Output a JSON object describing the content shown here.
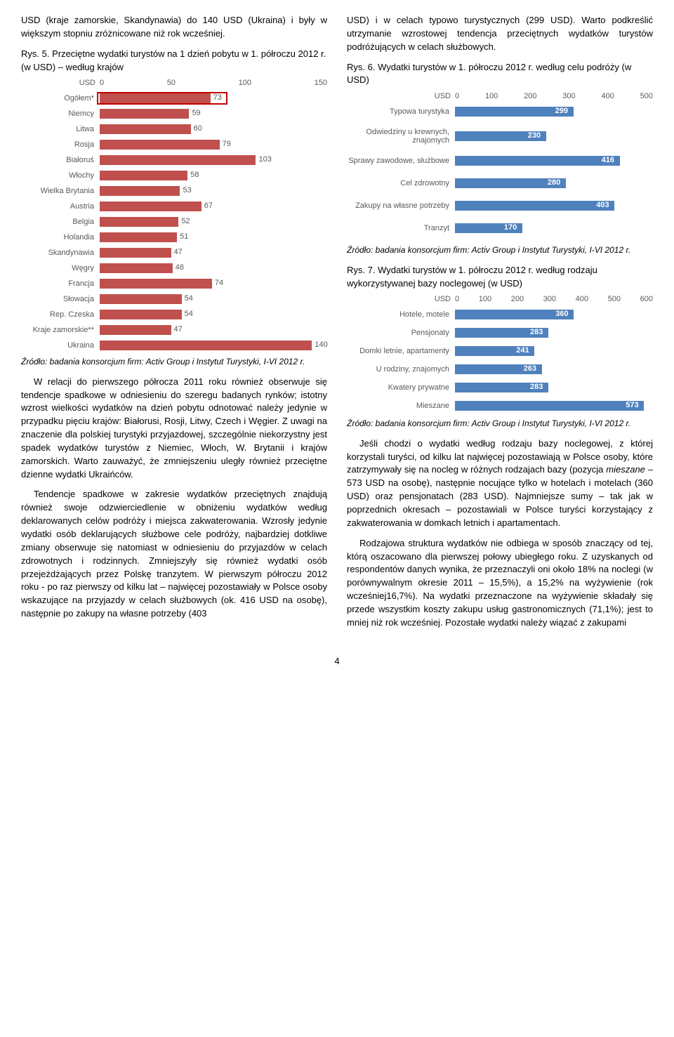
{
  "left": {
    "intro": "USD (kraje zamorskie, Skandynawia) do 140 USD (Ukraina) i były w większym stopniu zróżnicowane niż rok wcześniej.",
    "fig5_title": "Rys. 5. Przeciętne wydatki turystów na 1 dzień pobytu w 1. półroczu 2012 r. (w USD) – według krajów",
    "chart5": {
      "type": "bar",
      "usd_label": "USD",
      "label_width": 112,
      "bar_color": "#c0504d",
      "text_color": "#595959",
      "outline_color": "#c00000",
      "xmax": 150,
      "ticks": [
        "0",
        "50",
        "100",
        "150"
      ],
      "bars": [
        {
          "label": "Ogółem*",
          "v": 73,
          "outline": true
        },
        {
          "label": "Niemcy",
          "v": 59
        },
        {
          "label": "Litwa",
          "v": 60
        },
        {
          "label": "Rosja",
          "v": 79
        },
        {
          "label": "Białoruś",
          "v": 103
        },
        {
          "label": "Włochy",
          "v": 58
        },
        {
          "label": "Wielka Brytania",
          "v": 53
        },
        {
          "label": "Austria",
          "v": 67
        },
        {
          "label": "Belgia",
          "v": 52
        },
        {
          "label": "Holandia",
          "v": 51
        },
        {
          "label": "Skandynawia",
          "v": 47
        },
        {
          "label": "Węgry",
          "v": 48
        },
        {
          "label": "Francja",
          "v": 74
        },
        {
          "label": "Słowacja",
          "v": 54
        },
        {
          "label": "Rep. Czeska",
          "v": 54
        },
        {
          "label": "Kraje zamorskie**",
          "v": 47
        },
        {
          "label": "Ukraina",
          "v": 140
        }
      ]
    },
    "source5": "Źródło: badania konsorcjum firm: Activ Group i Instytut Turystyki, I-VI 2012 r.",
    "p1": "W relacji do pierwszego półrocza 2011 roku również obserwuje się tendencje spadkowe w odniesieniu do szeregu badanych rynków; istotny wzrost wielkości wydatków na dzień pobytu odnotować należy jedynie w przypadku pięciu krajów: Białorusi, Rosji, Litwy, Czech i Węgier. Z uwagi na znaczenie dla polskiej turystyki przyjazdowej, szczególnie niekorzystny jest spadek wydatków turystów z Niemiec, Włoch, W. Brytanii i krajów zamorskich. Warto zauważyć, że zmniejszeniu uległy również przeciętne dzienne wydatki Ukraińców.",
    "p2": "Tendencje spadkowe w zakresie wydatków przeciętnych znajdują również swoje odzwierciedlenie w obniżeniu wydatków według deklarowanych celów podróży i miejsca zakwaterowania. Wzrosły jedynie wydatki osób deklarujących służbowe cele podróży, najbardziej dotkliwe zmiany obserwuje się natomiast w odniesieniu do przyjazdów w celach zdrowotnych i rodzinnych. Zmniejszyły się również wydatki osób przejeżdżających przez Polskę tranzytem. W pierwszym półroczu 2012 roku - po raz pierwszy od kilku lat – najwięcej pozostawiały w Polsce osoby wskazujące na przyjazdy w celach służbowych (ok. 416 USD na osobę), następnie po zakupy na własne potrzeby (403"
  },
  "right": {
    "cont": "USD) i w celach typowo turystycznych (299 USD). Warto podkreślić utrzymanie wzrostowej tendencja przeciętnych wydatków turystów podróżujących w celach służbowych.",
    "fig6_title": "Rys. 6. Wydatki turystów w 1. półroczu 2012 r. według celu podróży (w USD)",
    "chart6": {
      "type": "bar",
      "usd_label": "USD",
      "label_width": 154,
      "bar_color": "#4f81bd",
      "text_color": "#595959",
      "xmax": 500,
      "ticks": [
        "0",
        "100",
        "200",
        "300",
        "400",
        "500"
      ],
      "bars": [
        {
          "label": "Typowa turystyka",
          "v": 299
        },
        {
          "label": "Odwiedziny u krewnych, znajomych",
          "v": 230
        },
        {
          "label": "Sprawy zawodowe, służbowe",
          "v": 416
        },
        {
          "label": "Cel zdrowotny",
          "v": 280
        },
        {
          "label": "Zakupy na własne potrzeby",
          "v": 403
        },
        {
          "label": "Tranzyt",
          "v": 170
        }
      ]
    },
    "source6": "Źródło: badania konsorcjum firm: Activ Group i Instytut Turystyki, I-VI 2012 r.",
    "fig7_title": "Rys. 7. Wydatki turystów w 1. półroczu 2012 r. według rodzaju wykorzystywanej bazy noclegowej (w USD)",
    "chart7": {
      "type": "bar",
      "usd_label": "USD",
      "label_width": 154,
      "bar_color": "#4f81bd",
      "text_color": "#595959",
      "xmax": 600,
      "ticks": [
        "0",
        "100",
        "200",
        "300",
        "400",
        "500",
        "600"
      ],
      "bars": [
        {
          "label": "Hotele, motele",
          "v": 360
        },
        {
          "label": "Pensjonaty",
          "v": 283
        },
        {
          "label": "Domki letnie, apartamenty",
          "v": 241
        },
        {
          "label": "U rodziny, znajomych",
          "v": 263
        },
        {
          "label": "Kwatery prywatne",
          "v": 283
        },
        {
          "label": "Mieszane",
          "v": 573
        }
      ]
    },
    "source7": "Źródło: badania konsorcjum firm: Activ Group i Instytut Turystyki, I-VI 2012 r.",
    "p3a": "Jeśli chodzi o wydatki według rodzaju bazy noclegowej, z której korzystali turyści, od kilku lat najwięcej pozostawiają w Polsce osoby, które zatrzymywały się na nocleg w różnych rodzajach bazy (pozycja ",
    "p3_em": "mieszane",
    "p3b": " – 573 USD na osobę), następnie nocujące tylko w hotelach i motelach (360 USD) oraz pensjonatach (283 USD). Najmniejsze sumy – tak jak w poprzednich okresach – pozostawiali w Polsce turyści korzystający z zakwaterowania w domkach letnich i apartamentach.",
    "p4": "Rodzajowa struktura wydatków nie odbiega w sposób znaczący od tej, którą oszacowano dla pierwszej połowy ubiegłego roku. Z uzyskanych od respondentów danych wynika, że przeznaczyli oni około 18% na noclegi (w porównywalnym okresie 2011 – 15,5%), a 15,2% na wyżywienie (rok wcześniej16,7%). Na wydatki przeznaczone na wyżywienie składały się przede wszystkim koszty zakupu usług gastronomicznych (71,1%); jest to mniej niż rok wcześniej. Pozostałe wydatki należy wiązać z zakupami"
  },
  "page": "4"
}
